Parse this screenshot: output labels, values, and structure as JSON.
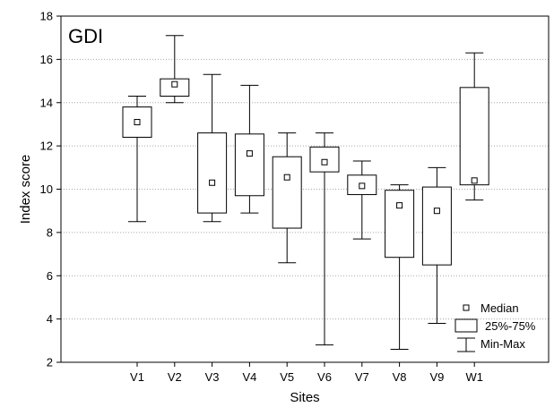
{
  "chart_data": {
    "type": "boxplot",
    "title": "GDI",
    "xlabel": "Sites",
    "ylabel": "Index score",
    "ylim": [
      2,
      18
    ],
    "yticks": [
      2,
      4,
      6,
      8,
      10,
      12,
      14,
      16,
      18
    ],
    "grid": "horizontal dotted",
    "legend_position": "bottom-right",
    "legend": {
      "median": "Median",
      "box": "25%-75%",
      "whisker": "Min-Max"
    },
    "categories": [
      "V1",
      "V2",
      "V3",
      "V4",
      "V5",
      "V6",
      "V7",
      "V8",
      "V9",
      "W1"
    ],
    "boxes": [
      {
        "site": "V1",
        "min": 8.5,
        "q1": 12.4,
        "median": 13.1,
        "q3": 13.8,
        "max": 14.3
      },
      {
        "site": "V2",
        "min": 14.0,
        "q1": 14.3,
        "median": 14.85,
        "q3": 15.1,
        "max": 17.1
      },
      {
        "site": "V3",
        "min": 8.5,
        "q1": 8.9,
        "median": 10.3,
        "q3": 12.6,
        "max": 15.3
      },
      {
        "site": "V4",
        "min": 8.9,
        "q1": 9.7,
        "median": 11.65,
        "q3": 12.55,
        "max": 14.8
      },
      {
        "site": "V5",
        "min": 6.6,
        "q1": 8.2,
        "median": 10.55,
        "q3": 11.5,
        "max": 12.6
      },
      {
        "site": "V6",
        "min": 2.8,
        "q1": 10.8,
        "median": 11.25,
        "q3": 11.95,
        "max": 12.6
      },
      {
        "site": "V7",
        "min": 7.7,
        "q1": 9.75,
        "median": 10.15,
        "q3": 10.65,
        "max": 11.3
      },
      {
        "site": "V8",
        "min": 2.6,
        "q1": 6.85,
        "median": 9.25,
        "q3": 9.95,
        "max": 10.2
      },
      {
        "site": "V9",
        "min": 3.8,
        "q1": 6.5,
        "median": 9.0,
        "q3": 10.1,
        "max": 11.0
      },
      {
        "site": "W1",
        "min": 9.5,
        "q1": 10.2,
        "median": 10.4,
        "q3": 14.7,
        "max": 16.3
      }
    ]
  }
}
